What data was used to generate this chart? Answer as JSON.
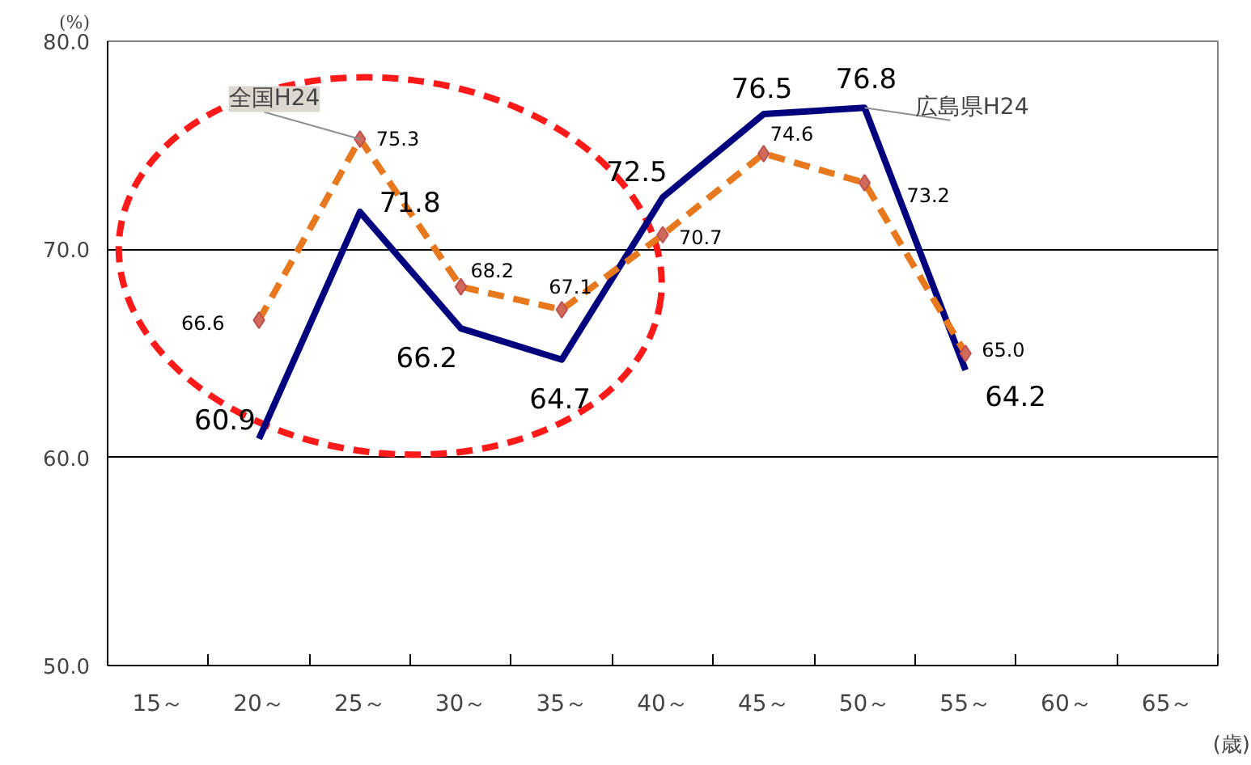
{
  "chart_data": {
    "type": "line",
    "ylabel": "(%)",
    "xlabel": "(歳)",
    "categories": [
      "15～",
      "20～",
      "25～",
      "30～",
      "35～",
      "40～",
      "45～",
      "50～",
      "55～",
      "60～",
      "65～"
    ],
    "series": [
      {
        "name": "広島県H24",
        "color": "#00007f",
        "line_style": "solid",
        "marker": "none",
        "value_labels": [
          null,
          "60.9",
          "71.8",
          "66.2",
          "64.7",
          "72.5",
          "76.5",
          "76.8",
          "64.2",
          null,
          null
        ],
        "values": [
          null,
          60.9,
          71.8,
          66.2,
          64.7,
          72.5,
          76.5,
          76.8,
          64.2,
          null,
          null
        ]
      },
      {
        "name": "全国H24",
        "color": "#e8781e",
        "line_style": "dashed",
        "marker": "diamond",
        "value_labels": [
          null,
          "66.6",
          "75.3",
          "68.2",
          "67.1",
          "70.7",
          "74.6",
          "73.2",
          "65.0",
          null,
          null
        ],
        "values": [
          null,
          66.6,
          75.3,
          68.2,
          67.1,
          70.7,
          74.6,
          73.2,
          65.0,
          null,
          null
        ]
      }
    ],
    "ylim": [
      50,
      80
    ],
    "yticks": [
      {
        "value": 50,
        "label": "50.0"
      },
      {
        "value": 60,
        "label": "60.0"
      },
      {
        "value": 70,
        "label": "70.0"
      },
      {
        "value": 80,
        "label": "80.0"
      }
    ],
    "grid": "y",
    "legend": false
  }
}
